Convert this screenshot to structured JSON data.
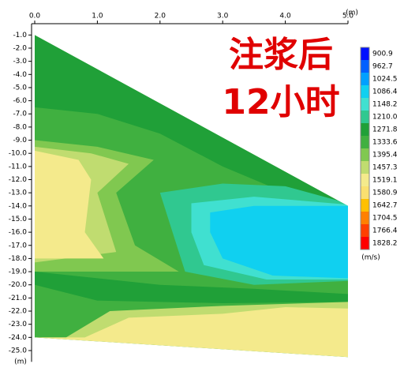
{
  "chart_data": {
    "type": "contour",
    "annotations": [
      "注浆后",
      "12小时"
    ],
    "x_unit": "(m)",
    "y_unit": "(m)",
    "colorbar_unit": "(m/s)",
    "xlim": [
      0,
      5
    ],
    "ylim": [
      -25.5,
      -0.5
    ],
    "xticks": [
      {
        "value": 0,
        "label": "0.0"
      },
      {
        "value": 1,
        "label": "1.0"
      },
      {
        "value": 2,
        "label": "2.0"
      },
      {
        "value": 3,
        "label": "3.0"
      },
      {
        "value": 4,
        "label": "4.0"
      },
      {
        "value": 5,
        "label": "5.0"
      }
    ],
    "yticks": [
      {
        "value": -1,
        "label": "-1.0"
      },
      {
        "value": -2,
        "label": "-2.0"
      },
      {
        "value": -3,
        "label": "-3.0"
      },
      {
        "value": -4,
        "label": "-4.0"
      },
      {
        "value": -5,
        "label": "-5.0"
      },
      {
        "value": -6,
        "label": "-6.0"
      },
      {
        "value": -7,
        "label": "-7.0"
      },
      {
        "value": -8,
        "label": "-8.0"
      },
      {
        "value": -9,
        "label": "-9.0"
      },
      {
        "value": -10,
        "label": "-10.0"
      },
      {
        "value": -11,
        "label": "-11.0"
      },
      {
        "value": -12,
        "label": "-12.0"
      },
      {
        "value": -13,
        "label": "-13.0"
      },
      {
        "value": -14,
        "label": "-14.0"
      },
      {
        "value": -15,
        "label": "-15.0"
      },
      {
        "value": -16,
        "label": "-16.0"
      },
      {
        "value": -17,
        "label": "-17.0"
      },
      {
        "value": -18,
        "label": "-18.0"
      },
      {
        "value": -19,
        "label": "-19.0"
      },
      {
        "value": -20,
        "label": "-20.0"
      },
      {
        "value": -21,
        "label": "-21.0"
      },
      {
        "value": -22,
        "label": "-22.0"
      },
      {
        "value": -23,
        "label": "-23.0"
      },
      {
        "value": -24,
        "label": "-24.0"
      },
      {
        "value": -25,
        "label": "-25.0"
      }
    ],
    "colorbar": {
      "levels": [
        900.9,
        962.7,
        1024.5,
        1086.4,
        1148.2,
        {
          "value": 1210,
          "label": "1210.0"
        },
        1271.8,
        1333.6,
        1395.4,
        1457.3,
        1519.1,
        1580.9,
        1642.7,
        1704.5,
        1766.4,
        1828.2
      ],
      "colors": [
        "#0010ff",
        "#0060ff",
        "#00a0ff",
        "#10d0f0",
        "#40e0d0",
        "#30c890",
        "#20a038",
        "#40b040",
        "#80c850",
        "#c0dc70",
        "#f4ea8c",
        "#fae070",
        "#ffc000",
        "#ff8000",
        "#ff4000",
        "#ff0000"
      ]
    }
  }
}
